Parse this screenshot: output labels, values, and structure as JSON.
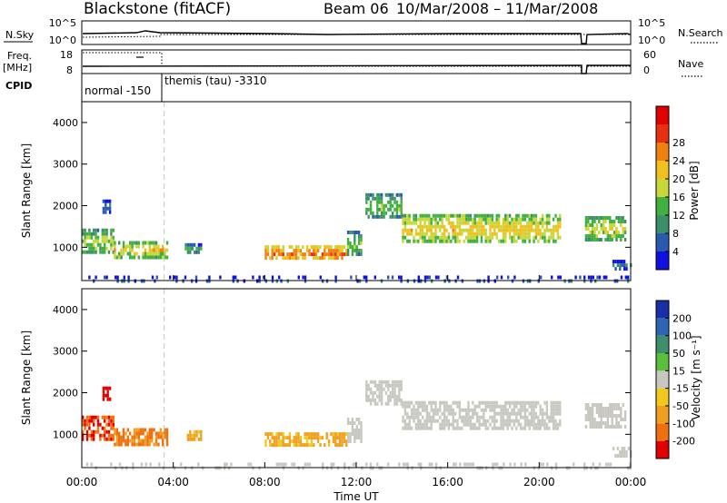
{
  "header": {
    "station": "Blackstone (fitACF)",
    "beam": "Beam 06",
    "date_range": "10/Mar/2008 – 11/Mar/2008"
  },
  "status_panels": {
    "nsky_label": "N.Sky",
    "nsearch_label": "N.Search",
    "freq_label_line1": "Freq.",
    "freq_label_line2": "[MHz]",
    "nave_label": "Nave",
    "cpid_label": "CPID",
    "noise_left_ticks": [
      "10^5",
      "10^0"
    ],
    "noise_right_ticks": [
      "10^5",
      "10^0"
    ],
    "freq_left_ticks": [
      "18",
      "8"
    ],
    "freq_right_ticks": [
      "60",
      "0"
    ],
    "cpid_modes": [
      {
        "start_hour": 0,
        "label": "normal -150"
      },
      {
        "start_hour": 3.6,
        "label": "themis (tau) -3310"
      }
    ]
  },
  "colorbars": {
    "power": {
      "label": "Power [dB]",
      "ticks": [
        "4",
        "8",
        "12",
        "16",
        "20",
        "24",
        "28"
      ],
      "colors": [
        "#1010e0",
        "#2a5ab0",
        "#3d8f6a",
        "#40b040",
        "#c8d83a",
        "#f0c020",
        "#f08010",
        "#e83010",
        "#e00000"
      ]
    },
    "velocity": {
      "label": "Velocity [m s⁻¹]",
      "ticks": [
        "200",
        "100",
        "50",
        "15",
        "-15",
        "-50",
        "-100",
        "-200"
      ],
      "colors": [
        "#1a2ea8",
        "#2d64b4",
        "#3f8f6c",
        "#5cbf3c",
        "#c8c8c0",
        "#f0c820",
        "#f0a020",
        "#f07010",
        "#e00000"
      ]
    }
  },
  "chart_data": {
    "type": "heatmap",
    "x_axis": {
      "label": "Time UT",
      "range_hours": [
        0,
        24
      ],
      "ticks": [
        "00:00",
        "04:00",
        "08:00",
        "12:00",
        "16:00",
        "20:00",
        "00:00"
      ]
    },
    "y_axis": {
      "label": "Slant Range [km]",
      "range_km": [
        200,
        4500
      ],
      "ticks": [
        "1000",
        "2000",
        "3000",
        "4000"
      ]
    },
    "mode_change_hour": 3.6,
    "data_gap_hours": [
      21.6,
      21.75
    ],
    "scatter_regions": [
      {
        "t0": 0.0,
        "t1": 1.4,
        "r0": 850,
        "r1": 1450,
        "power_db": 14,
        "velocity": -150
      },
      {
        "t0": 1.4,
        "t1": 3.7,
        "r0": 800,
        "r1": 1150,
        "power_db": 18,
        "velocity": -80
      },
      {
        "t0": 0.9,
        "t1": 1.2,
        "r0": 1850,
        "r1": 2150,
        "power_db": 6,
        "velocity": -200
      },
      {
        "t0": 4.5,
        "t1": 5.2,
        "r0": 900,
        "r1": 1100,
        "power_db": 10,
        "velocity": -40
      },
      {
        "t0": 8.0,
        "t1": 11.6,
        "r0": 750,
        "r1": 1050,
        "power_db": 24,
        "velocity": -40
      },
      {
        "t0": 11.6,
        "t1": 12.2,
        "r0": 800,
        "r1": 1400,
        "power_db": 12,
        "velocity": 0
      },
      {
        "t0": 12.4,
        "t1": 14.0,
        "r0": 1700,
        "r1": 2300,
        "power_db": 12,
        "velocity": 0
      },
      {
        "t0": 14.0,
        "t1": 20.9,
        "r0": 1150,
        "r1": 1800,
        "power_db": 18,
        "velocity": 0
      },
      {
        "t0": 22.0,
        "t1": 23.8,
        "r0": 1200,
        "r1": 1750,
        "power_db": 16,
        "velocity": 0
      },
      {
        "t0": 23.2,
        "t1": 24.0,
        "r0": 500,
        "r1": 700,
        "power_db": 6,
        "velocity": 0
      },
      {
        "t0": 0.0,
        "t1": 24.0,
        "r0": 200,
        "r1": 320,
        "power_db": 6,
        "velocity": 0
      }
    ]
  }
}
